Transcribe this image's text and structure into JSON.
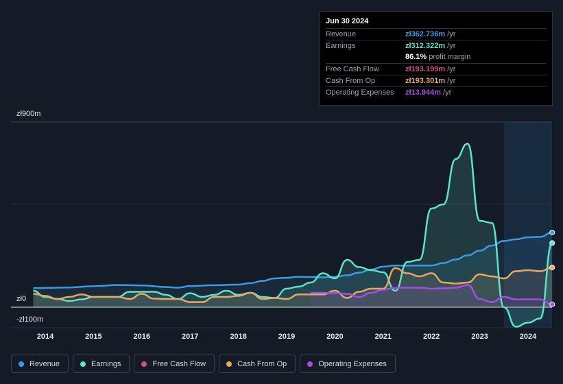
{
  "tooltip": {
    "date": "Jun 30 2024",
    "rows": [
      {
        "label": "Revenue",
        "value": "zł362.736m",
        "unit": "/yr",
        "color": "#3b9ae1"
      },
      {
        "label": "Earnings",
        "value": "zł312.322m",
        "unit": "/yr",
        "color": "#5de3c8"
      },
      {
        "label": "",
        "value": "86.1%",
        "unit": "profit margin",
        "color": "#ffffff"
      },
      {
        "label": "Free Cash Flow",
        "value": "zł193.199m",
        "unit": "/yr",
        "color": "#d34e8a"
      },
      {
        "label": "Cash From Op",
        "value": "zł193.301m",
        "unit": "/yr",
        "color": "#e8a860"
      },
      {
        "label": "Operating Expenses",
        "value": "zł13.944m",
        "unit": "/yr",
        "color": "#a64de8"
      }
    ]
  },
  "chart_data": {
    "type": "line",
    "ylim": [
      -100,
      900
    ],
    "ytick_labels": [
      "zł900m",
      "zł0",
      "-zł100m"
    ],
    "xtick_labels": [
      "2014",
      "2015",
      "2016",
      "2017",
      "2018",
      "2019",
      "2020",
      "2021",
      "2022",
      "2023",
      "2024"
    ],
    "xlim": [
      2013.75,
      2024.5
    ],
    "forecast_start": 2023.5,
    "series": [
      {
        "name": "Revenue",
        "color": "#3b9ae1",
        "x": [
          2013.75,
          2014.0,
          2014.5,
          2015.0,
          2015.5,
          2016.0,
          2016.5,
          2016.75,
          2017.0,
          2017.5,
          2018.0,
          2018.25,
          2018.5,
          2018.75,
          2019.0,
          2019.25,
          2019.5,
          2019.75,
          2020.0,
          2020.25,
          2020.5,
          2020.75,
          2021.0,
          2021.25,
          2021.5,
          2021.75,
          2022.0,
          2022.25,
          2022.5,
          2022.75,
          2023.0,
          2023.25,
          2023.5,
          2023.75,
          2024.0,
          2024.25,
          2024.5
        ],
        "values": [
          93,
          94,
          96,
          102,
          108,
          106,
          98,
          95,
          103,
          107,
          110,
          117,
          128,
          140,
          143,
          148,
          147,
          145,
          148,
          155,
          168,
          183,
          197,
          203,
          202,
          203,
          203,
          215,
          232,
          252,
          275,
          300,
          322,
          330,
          340,
          342,
          363
        ]
      },
      {
        "name": "Earnings",
        "color": "#5de3c8",
        "x": [
          2013.75,
          2014.0,
          2014.25,
          2014.5,
          2014.75,
          2015.0,
          2015.25,
          2015.5,
          2015.75,
          2016.0,
          2016.25,
          2016.5,
          2016.75,
          2017.0,
          2017.25,
          2017.5,
          2017.75,
          2018.0,
          2018.25,
          2018.5,
          2018.75,
          2019.0,
          2019.25,
          2019.5,
          2019.75,
          2020.0,
          2020.25,
          2020.5,
          2020.75,
          2021.0,
          2021.25,
          2021.5,
          2021.75,
          2022.0,
          2022.25,
          2022.5,
          2022.75,
          2023.0,
          2023.25,
          2023.5,
          2023.75,
          2024.0,
          2024.25,
          2024.5
        ],
        "values": [
          80,
          50,
          40,
          30,
          38,
          50,
          50,
          50,
          75,
          75,
          75,
          60,
          40,
          68,
          50,
          60,
          80,
          60,
          70,
          50,
          45,
          90,
          100,
          120,
          165,
          140,
          230,
          195,
          180,
          170,
          80,
          220,
          230,
          480,
          500,
          720,
          795,
          420,
          410,
          0,
          -95,
          -75,
          -55,
          312
        ]
      },
      {
        "name": "Cash From Op",
        "color": "#e8a860",
        "x": [
          2013.75,
          2014.0,
          2014.25,
          2014.5,
          2014.75,
          2015.0,
          2015.25,
          2015.5,
          2015.75,
          2016.0,
          2016.25,
          2016.5,
          2016.75,
          2017.0,
          2017.25,
          2017.5,
          2017.75,
          2018.0,
          2018.25,
          2018.5,
          2018.75,
          2019.0,
          2019.25,
          2019.5,
          2019.75,
          2020.0,
          2020.25,
          2020.5,
          2020.75,
          2021.0,
          2021.25,
          2021.5,
          2021.75,
          2022.0,
          2022.25,
          2022.5,
          2022.75,
          2023.0,
          2023.25,
          2023.5,
          2023.75,
          2024.0,
          2024.25,
          2024.5
        ],
        "values": [
          65,
          55,
          40,
          50,
          62,
          50,
          50,
          50,
          40,
          65,
          42,
          40,
          40,
          25,
          25,
          50,
          50,
          55,
          70,
          40,
          45,
          40,
          62,
          62,
          62,
          80,
          45,
          75,
          90,
          90,
          190,
          165,
          150,
          165,
          120,
          115,
          120,
          160,
          150,
          140,
          175,
          180,
          175,
          193
        ]
      },
      {
        "name": "Operating Expenses",
        "color": "#a64de8",
        "x": [
          2019.5,
          2019.75,
          2020.0,
          2020.25,
          2020.5,
          2020.75,
          2021.0,
          2021.25,
          2021.5,
          2021.75,
          2022.0,
          2022.25,
          2022.5,
          2022.75,
          2023.0,
          2023.25,
          2023.5,
          2023.75,
          2024.0,
          2024.25,
          2024.5
        ],
        "values": [
          70,
          70,
          68,
          65,
          50,
          70,
          85,
          95,
          95,
          95,
          90,
          92,
          95,
          108,
          40,
          25,
          50,
          38,
          38,
          38,
          14
        ]
      }
    ]
  },
  "legend": [
    {
      "label": "Revenue",
      "color": "#3b9ae1"
    },
    {
      "label": "Earnings",
      "color": "#5de3c8"
    },
    {
      "label": "Free Cash Flow",
      "color": "#d34e8a"
    },
    {
      "label": "Cash From Op",
      "color": "#e8a860"
    },
    {
      "label": "Operating Expenses",
      "color": "#a64de8"
    }
  ]
}
